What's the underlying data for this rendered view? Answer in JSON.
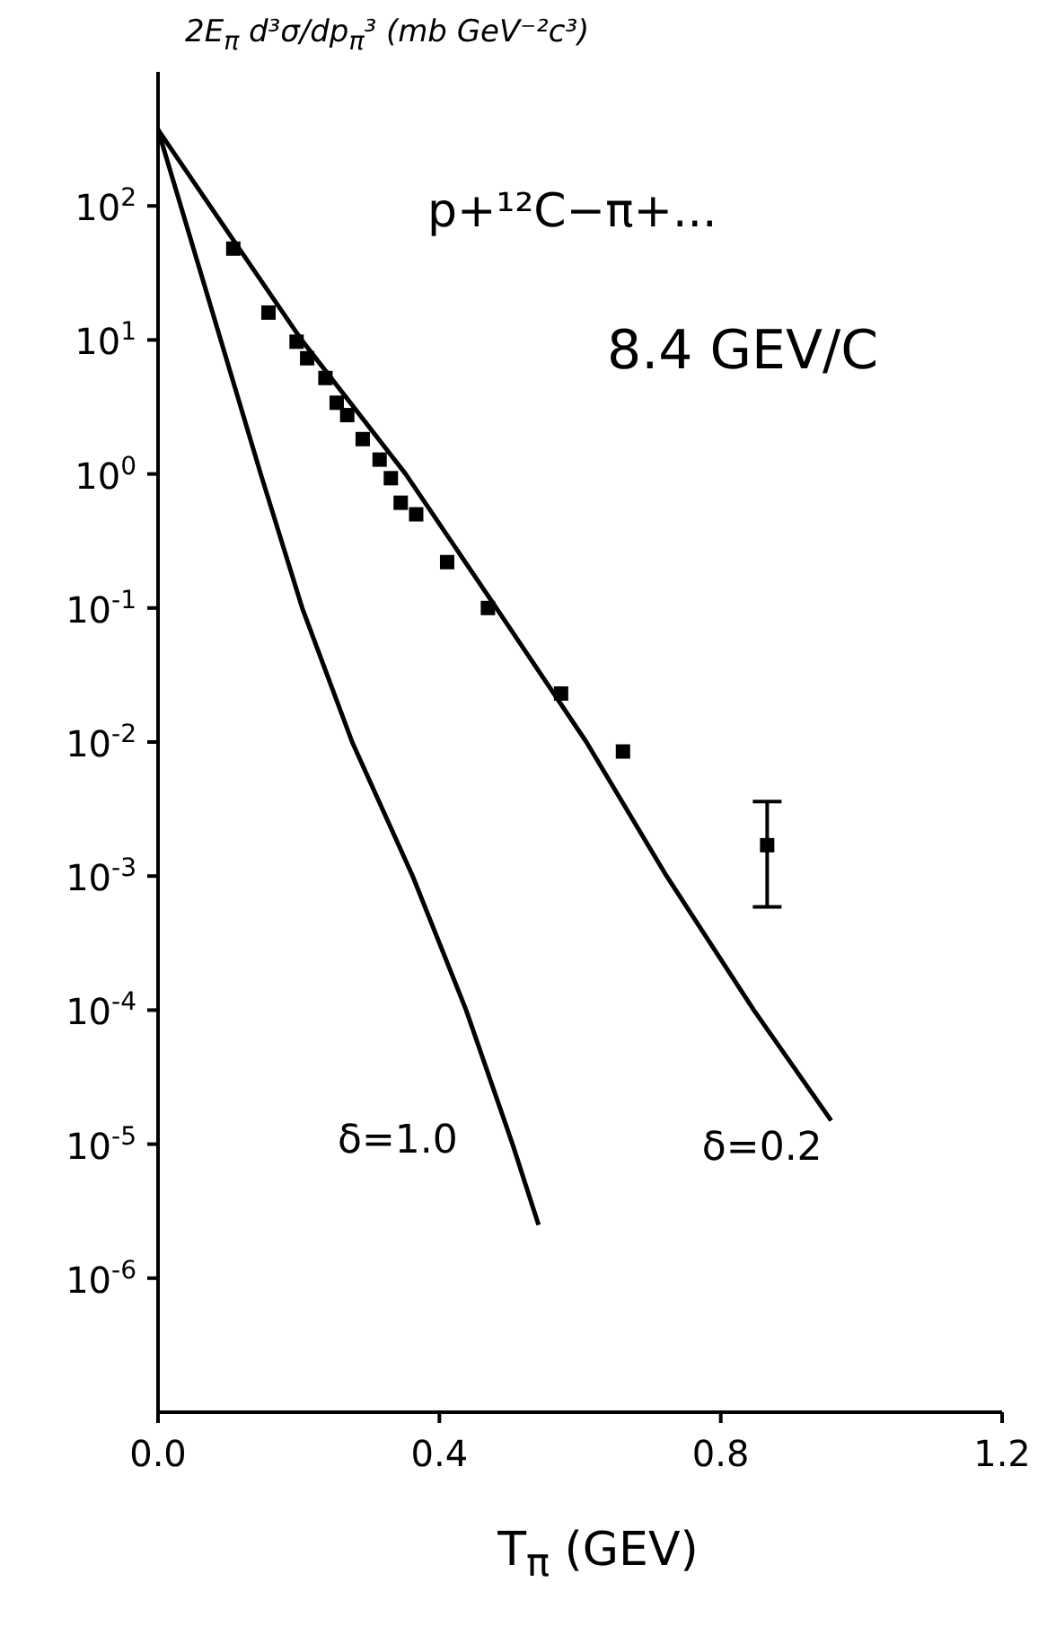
{
  "chart_data": {
    "type": "scatter",
    "xlabel": "T$_{π}$ (GEV)",
    "ylabel": "2E$_{π}$ d³σ/dp$_{π}$³ (mb GeV⁻²c³)",
    "annotations": [
      "p+¹²C−π+...",
      "8.4 GEV/C"
    ],
    "xlim": [
      0,
      1.2
    ],
    "xticks": [
      {
        "value": 0,
        "label": "0.0"
      },
      0.4,
      0.8,
      1.2
    ],
    "ylim": [
      1e-07,
      1000
    ],
    "yticks": [
      {
        "value": 1e-06,
        "label": "10$^{-6}$"
      },
      {
        "value": 1e-05,
        "label": "10$^{-5}$"
      },
      {
        "value": 0.0001,
        "label": "10$^{-4}$"
      },
      {
        "value": 0.001,
        "label": "10$^{-3}$"
      },
      {
        "value": 0.01,
        "label": "10$^{-2}$"
      },
      {
        "value": 0.1,
        "label": "10$^{-1}$"
      },
      {
        "value": 1,
        "label": "10$^{0}$"
      },
      {
        "value": 10,
        "label": "10$^{1}$"
      },
      {
        "value": 100,
        "label": "10$^{2}$"
      }
    ],
    "log": "y",
    "series": [
      {
        "marker": "square",
        "color": "#000000",
        "x": [
          0.107,
          0.157,
          0.197,
          0.212,
          0.238,
          0.254,
          0.269,
          0.291,
          0.315,
          0.331,
          0.345,
          0.367,
          0.411,
          0.469,
          0.573,
          0.661,
          0.866
        ],
        "values": [
          48,
          16,
          9.7,
          7.3,
          5.2,
          3.4,
          2.75,
          1.82,
          1.28,
          0.93,
          0.61,
          0.5,
          0.22,
          0.1,
          0.023,
          0.0085,
          0.0017
        ],
        "errors": [
          null,
          null,
          null,
          null,
          null,
          null,
          null,
          null,
          null,
          null,
          null,
          null,
          null,
          null,
          null,
          null,
          [
            0.00059,
            0.0036
          ]
        ]
      },
      {
        "type": "line",
        "marker": "none",
        "name": "δ=1.0",
        "color": "#000000",
        "x": [
          0,
          0.146,
          0.205,
          0.276,
          0.362,
          0.438,
          0.504,
          0.541
        ],
        "values": [
          370,
          1,
          0.1,
          0.01,
          0.001,
          0.0001,
          1e-05,
          2.5e-06
        ]
      },
      {
        "type": "line",
        "marker": "none",
        "name": "δ=0.2",
        "color": "#000000",
        "x": [
          0,
          0.204,
          0.352,
          0.481,
          0.609,
          0.723,
          0.847,
          0.957
        ],
        "values": [
          370,
          10,
          1,
          0.1,
          0.01,
          0.001,
          0.0001,
          1.5e-05
        ]
      }
    ]
  }
}
